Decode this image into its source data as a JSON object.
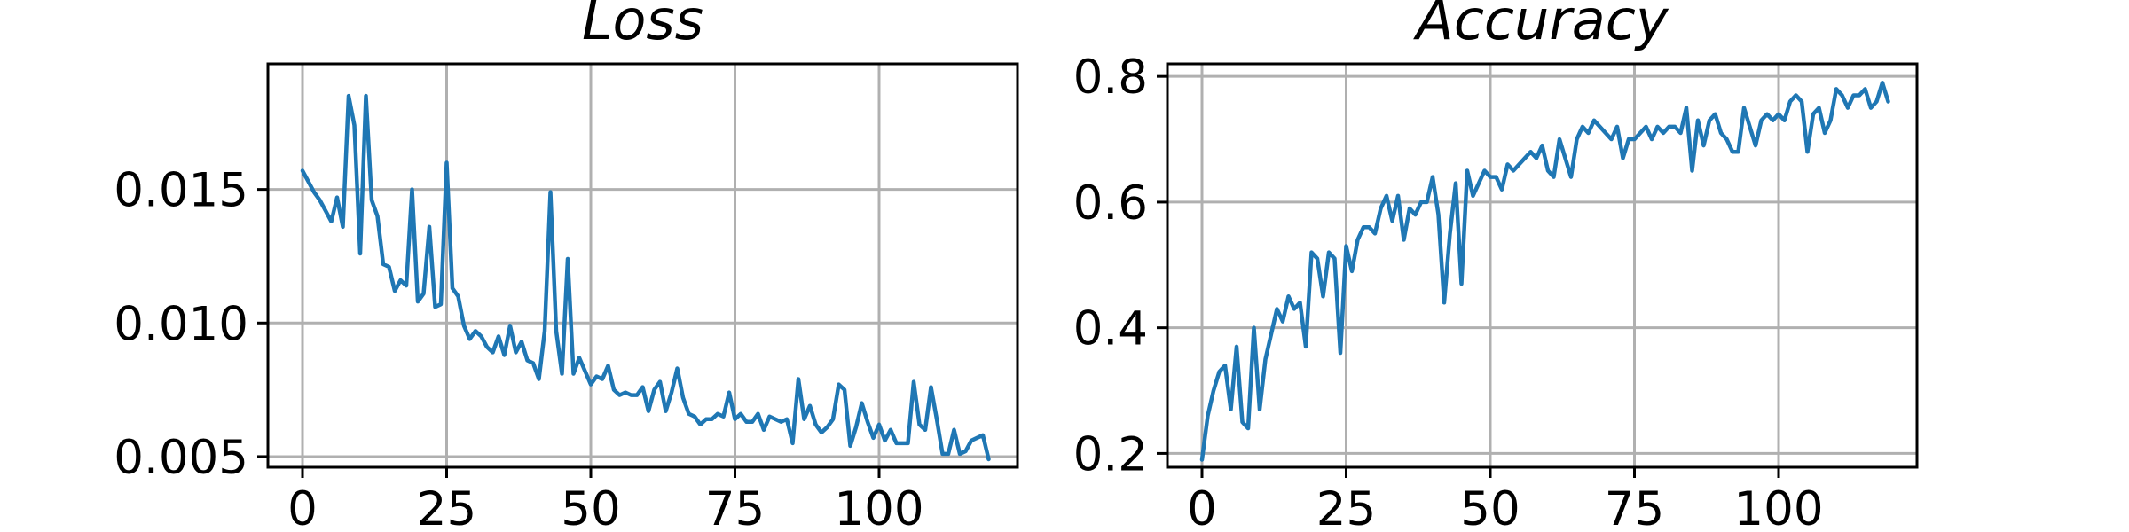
{
  "chart_data": [
    {
      "type": "line",
      "title": "Loss",
      "xlabel": "",
      "ylabel": "",
      "xlim": [
        -6,
        124
      ],
      "ylim": [
        0.0046,
        0.0197
      ],
      "xticks": [
        0,
        25,
        50,
        75,
        100
      ],
      "xtick_labels": [
        "0",
        "25",
        "50",
        "75",
        "100"
      ],
      "yticks": [
        0.005,
        0.01,
        0.015
      ],
      "ytick_labels": [
        "0.005",
        "0.010",
        "0.015"
      ],
      "grid": true,
      "legend": "none",
      "color": "#1f77b4",
      "series": [
        {
          "x": [
            0,
            1,
            2,
            3,
            4,
            5,
            6,
            7,
            8,
            9,
            10,
            11,
            12,
            13,
            14,
            15,
            16,
            17,
            18,
            19,
            20,
            21,
            22,
            23,
            24,
            25,
            26,
            27,
            28,
            29,
            30,
            31,
            32,
            33,
            34,
            35,
            36,
            37,
            38,
            39,
            40,
            41,
            42,
            43,
            44,
            45,
            46,
            47,
            48,
            49,
            50,
            51,
            52,
            53,
            54,
            55,
            56,
            57,
            58,
            59,
            60,
            61,
            62,
            63,
            64,
            65,
            66,
            67,
            68,
            69,
            70,
            71,
            72,
            73,
            74,
            75,
            76,
            77,
            78,
            79,
            80,
            81,
            82,
            83,
            84,
            85,
            86,
            87,
            88,
            89,
            90,
            91,
            92,
            93,
            94,
            95,
            96,
            97,
            98,
            99,
            100,
            101,
            102,
            103,
            104,
            105,
            106,
            107,
            108,
            109,
            110,
            111,
            112,
            113,
            114,
            115,
            116,
            117,
            118,
            119
          ],
          "y": [
            0.0157,
            0.0153,
            0.0149,
            0.0146,
            0.0142,
            0.0138,
            0.0147,
            0.0136,
            0.0185,
            0.0174,
            0.0126,
            0.0185,
            0.0146,
            0.014,
            0.0122,
            0.0121,
            0.0112,
            0.0116,
            0.0114,
            0.015,
            0.0108,
            0.0111,
            0.0136,
            0.0106,
            0.0107,
            0.016,
            0.0113,
            0.011,
            0.0099,
            0.0094,
            0.0097,
            0.0095,
            0.0091,
            0.0089,
            0.0095,
            0.0088,
            0.0099,
            0.0089,
            0.0093,
            0.0086,
            0.0085,
            0.0079,
            0.0097,
            0.0149,
            0.0097,
            0.0081,
            0.0124,
            0.0081,
            0.0087,
            0.0082,
            0.0077,
            0.008,
            0.0079,
            0.0084,
            0.0075,
            0.0073,
            0.0074,
            0.0073,
            0.0073,
            0.0076,
            0.0067,
            0.0075,
            0.0078,
            0.0067,
            0.0074,
            0.0083,
            0.0072,
            0.0066,
            0.0065,
            0.0062,
            0.0064,
            0.0064,
            0.0066,
            0.0065,
            0.0074,
            0.0064,
            0.0066,
            0.0063,
            0.0063,
            0.0066,
            0.006,
            0.0065,
            0.0064,
            0.0063,
            0.0064,
            0.0055,
            0.0079,
            0.0064,
            0.0069,
            0.0062,
            0.0059,
            0.0061,
            0.0064,
            0.0077,
            0.0075,
            0.0054,
            0.0061,
            0.007,
            0.0063,
            0.0057,
            0.0062,
            0.0056,
            0.006,
            0.0055,
            0.0055,
            0.0055,
            0.0078,
            0.0062,
            0.006,
            0.0076,
            0.0064,
            0.0051,
            0.0051,
            0.006,
            0.0051,
            0.0052,
            0.0056,
            0.0057,
            0.0058,
            0.0049
          ]
        }
      ]
    },
    {
      "type": "line",
      "title": "Accuracy",
      "xlabel": "",
      "ylabel": "",
      "xlim": [
        -6,
        124
      ],
      "ylim": [
        0.178,
        0.82
      ],
      "xticks": [
        0,
        25,
        50,
        75,
        100
      ],
      "xtick_labels": [
        "0",
        "25",
        "50",
        "75",
        "100"
      ],
      "yticks": [
        0.2,
        0.4,
        0.6,
        0.8
      ],
      "ytick_labels": [
        "0.2",
        "0.4",
        "0.6",
        "0.8"
      ],
      "grid": true,
      "legend": "none",
      "color": "#1f77b4",
      "series": [
        {
          "x": [
            0,
            1,
            2,
            3,
            4,
            5,
            6,
            7,
            8,
            9,
            10,
            11,
            12,
            13,
            14,
            15,
            16,
            17,
            18,
            19,
            20,
            21,
            22,
            23,
            24,
            25,
            26,
            27,
            28,
            29,
            30,
            31,
            32,
            33,
            34,
            35,
            36,
            37,
            38,
            39,
            40,
            41,
            42,
            43,
            44,
            45,
            46,
            47,
            48,
            49,
            50,
            51,
            52,
            53,
            54,
            55,
            56,
            57,
            58,
            59,
            60,
            61,
            62,
            63,
            64,
            65,
            66,
            67,
            68,
            69,
            70,
            71,
            72,
            73,
            74,
            75,
            76,
            77,
            78,
            79,
            80,
            81,
            82,
            83,
            84,
            85,
            86,
            87,
            88,
            89,
            90,
            91,
            92,
            93,
            94,
            95,
            96,
            97,
            98,
            99,
            100,
            101,
            102,
            103,
            104,
            105,
            106,
            107,
            108,
            109,
            110,
            111,
            112,
            113,
            114,
            115,
            116,
            117,
            118,
            119
          ],
          "y": [
            0.19,
            0.26,
            0.3,
            0.33,
            0.34,
            0.27,
            0.37,
            0.25,
            0.24,
            0.4,
            0.27,
            0.35,
            0.39,
            0.43,
            0.41,
            0.45,
            0.43,
            0.44,
            0.37,
            0.52,
            0.51,
            0.45,
            0.52,
            0.51,
            0.36,
            0.53,
            0.49,
            0.54,
            0.56,
            0.56,
            0.55,
            0.59,
            0.61,
            0.57,
            0.61,
            0.54,
            0.59,
            0.58,
            0.6,
            0.6,
            0.64,
            0.58,
            0.44,
            0.55,
            0.63,
            0.47,
            0.65,
            0.61,
            0.63,
            0.65,
            0.64,
            0.64,
            0.62,
            0.66,
            0.65,
            0.66,
            0.67,
            0.68,
            0.67,
            0.69,
            0.65,
            0.64,
            0.7,
            0.67,
            0.64,
            0.7,
            0.72,
            0.71,
            0.73,
            0.72,
            0.71,
            0.7,
            0.72,
            0.67,
            0.7,
            0.7,
            0.71,
            0.72,
            0.7,
            0.72,
            0.71,
            0.72,
            0.72,
            0.71,
            0.75,
            0.65,
            0.73,
            0.69,
            0.73,
            0.74,
            0.71,
            0.7,
            0.68,
            0.68,
            0.75,
            0.72,
            0.69,
            0.73,
            0.74,
            0.73,
            0.74,
            0.73,
            0.76,
            0.77,
            0.76,
            0.68,
            0.74,
            0.75,
            0.71,
            0.73,
            0.78,
            0.77,
            0.75,
            0.77,
            0.77,
            0.78,
            0.75,
            0.76,
            0.79,
            0.76
          ]
        }
      ]
    }
  ]
}
